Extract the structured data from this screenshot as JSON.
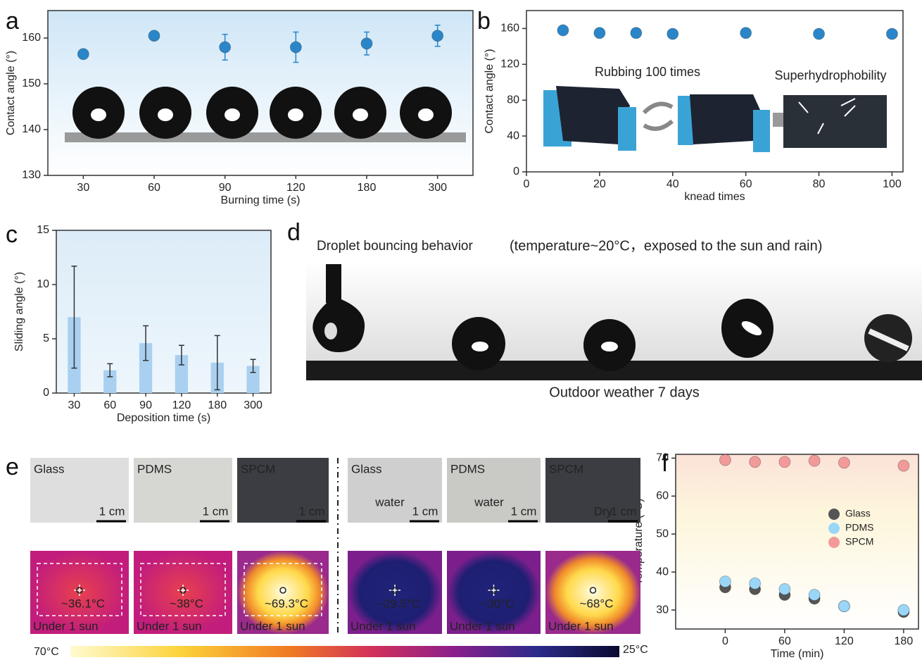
{
  "chart_data": [
    {
      "type": "scatter",
      "panel_label": "a",
      "xlabel": "Burning time (s)",
      "ylabel": "Contact angle (°)",
      "categories": [
        "30",
        "60",
        "90",
        "120",
        "180",
        "300"
      ],
      "series": [
        {
          "color": "#2a86c8",
          "values": [
            156.5,
            160.5,
            158,
            158,
            158.8,
            160.5
          ],
          "errors": [
            0.5,
            0.8,
            2.8,
            3.3,
            2.5,
            2.3
          ]
        }
      ],
      "ylim": [
        130,
        166
      ],
      "yticks": [
        130,
        140,
        150,
        160
      ]
    },
    {
      "type": "scatter",
      "panel_label": "b",
      "xlabel": "knead times",
      "ylabel": "Contact angle (°)",
      "annotations": [
        "Rubbing 100 times",
        "Superhydrophobility"
      ],
      "x": [
        10,
        20,
        30,
        40,
        60,
        80,
        100
      ],
      "series": [
        {
          "color": "#2a86c8",
          "values": [
            158,
            155,
            155,
            154,
            155,
            154,
            154
          ]
        }
      ],
      "xlim": [
        0,
        103
      ],
      "xticks": [
        0,
        20,
        40,
        60,
        80,
        100
      ],
      "ylim": [
        0,
        180
      ],
      "yticks": [
        0,
        40,
        80,
        120,
        160
      ]
    },
    {
      "type": "bar",
      "panel_label": "c",
      "xlabel": "Deposition time (s)",
      "ylabel": "Sliding angle (°)",
      "categories": [
        "30",
        "60",
        "90",
        "120",
        "180",
        "300"
      ],
      "series": [
        {
          "color": "#a9d0f0",
          "values": [
            7.0,
            2.1,
            4.6,
            3.5,
            2.8,
            2.5
          ],
          "errors": [
            4.7,
            0.6,
            1.6,
            0.9,
            2.5,
            0.6
          ]
        }
      ],
      "ylim": [
        0,
        15
      ],
      "yticks": [
        0,
        5,
        10,
        15
      ]
    },
    {
      "type": "scatter",
      "panel_label": "f",
      "xlabel": "Time (min)",
      "ylabel": "Temperature (°C)",
      "x": [
        0,
        30,
        60,
        90,
        120,
        180
      ],
      "series": [
        {
          "name": "Glass",
          "color": "#555555",
          "values": [
            36,
            35.5,
            34,
            33,
            31,
            29.5
          ]
        },
        {
          "name": "PDMS",
          "color": "#9ad6f7",
          "values": [
            37.5,
            37,
            35.5,
            34,
            31,
            30
          ]
        },
        {
          "name": "SPCM",
          "color": "#f29a9a",
          "values": [
            69.5,
            69,
            69,
            69.3,
            68.8,
            68
          ]
        }
      ],
      "xlim": [
        -50,
        195
      ],
      "xticks": [
        0,
        60,
        120,
        180
      ],
      "ylim": [
        25,
        71
      ],
      "yticks": [
        30,
        40,
        50,
        60,
        70
      ],
      "legend": "center-right"
    }
  ],
  "panel_d": {
    "label": "d",
    "title": "Droplet bouncing behavior",
    "condition": "(temperature~20°C，exposed to the sun and rain)",
    "caption": "Outdoor weather 7 days"
  },
  "panel_e": {
    "label": "e",
    "photos": [
      {
        "sample": "Glass",
        "scale": "1 cm"
      },
      {
        "sample": "PDMS",
        "scale": "1 cm"
      },
      {
        "sample": "SPCM",
        "scale": "1 cm"
      },
      {
        "sample": "Glass",
        "scale": "1 cm",
        "note": "water"
      },
      {
        "sample": "PDMS",
        "scale": "1 cm",
        "note": "water"
      },
      {
        "sample": "SPCM",
        "scale": "1 cm",
        "note": "Dry"
      }
    ],
    "thermal": [
      {
        "temperature": "~36.1°C",
        "caption": "Under 1 sun"
      },
      {
        "temperature": "~38°C",
        "caption": "Under 1 sun"
      },
      {
        "temperature": "~69.3°C",
        "caption": "Under 1 sun"
      },
      {
        "temperature": "~29.5°C",
        "caption": "Under 1 sun"
      },
      {
        "temperature": "~30°C",
        "caption": "Under 1 sun"
      },
      {
        "temperature": "~68°C",
        "caption": "Under 1 sun"
      }
    ],
    "colorbar": {
      "high": "70°C",
      "low": "25°C"
    }
  }
}
